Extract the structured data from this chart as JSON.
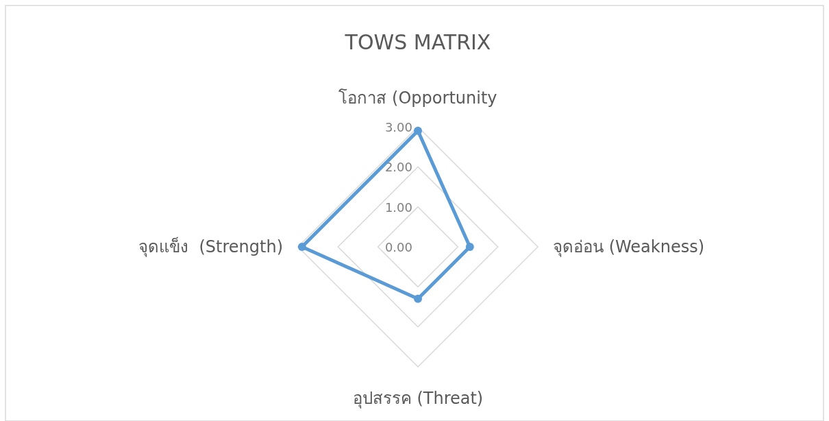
{
  "chart_data": {
    "type": "radar",
    "title": "TOWS MATRIX",
    "categories": [
      "โอกาส (Opportunity",
      "จุดอ่อน (Weakness)",
      "อุปสรรค (Threat)",
      "จุดแข็ง  (Strength)"
    ],
    "series": [
      {
        "color": "#5b9bd5",
        "values": [
          2.9,
          1.3,
          1.3,
          2.9
        ]
      }
    ],
    "ylim": [
      0,
      3
    ],
    "yticks": [
      {
        "value": 0,
        "label": "0.00"
      },
      {
        "value": 1,
        "label": "1.00"
      },
      {
        "value": 2,
        "label": "2.00"
      },
      {
        "value": 3,
        "label": "3.00"
      }
    ],
    "grid": true,
    "marker": "circle"
  }
}
